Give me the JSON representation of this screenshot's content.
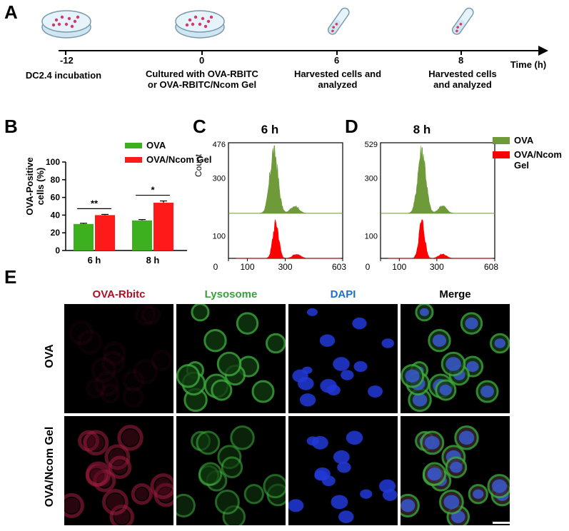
{
  "panels": {
    "a": "A",
    "b": "B",
    "c": "C",
    "d": "D",
    "e": "E"
  },
  "timeline": {
    "ticks": [
      {
        "value": "-12",
        "label": "DC2.4 incubation"
      },
      {
        "value": "0",
        "label": "Cultured with OVA-RBITC\nor OVA-RBITC/Ncom Gel"
      },
      {
        "value": "6",
        "label": "Harvested cells and\nanalyzed"
      },
      {
        "value": "8",
        "label": "Harvested cells\nand analyzed"
      }
    ],
    "axis_label": "Time (h)",
    "icons": [
      "petri-dish-icon",
      "petri-dish-icon",
      "test-tube-icon",
      "test-tube-icon"
    ]
  },
  "colors": {
    "ova": "#3cb01e",
    "ova_ncom": "#ff1a1a",
    "hist_green": "#6e9a3a",
    "hist_red": "#ff0000",
    "lysosome": "#3aa03a",
    "dapi": "#1c6fd0",
    "ova_rbitc": "#b01020"
  },
  "chart_data": [
    {
      "type": "bar",
      "ylabel": "OVA-Positive\ncells (%)",
      "categories": [
        "6 h",
        "8 h"
      ],
      "ylim": [
        0,
        100
      ],
      "yticks": [
        "0",
        "20",
        "40",
        "60",
        "80",
        "100"
      ],
      "series": [
        {
          "name": "OVA",
          "values": [
            30,
            34
          ],
          "errors": [
            0.8,
            1.0
          ]
        },
        {
          "name": "OVA/Ncom Gel",
          "values": [
            40,
            54
          ],
          "errors": [
            0.8,
            2.0
          ]
        }
      ],
      "significance": [
        "**",
        "*"
      ],
      "legend": "top"
    },
    {
      "type": "area",
      "title": "6 h",
      "ylabel": "Count",
      "yticks": [
        "100",
        "300",
        "476"
      ],
      "xticks": [
        "0",
        "100",
        "300",
        "603.1"
      ],
      "series": [
        {
          "name": "OVA",
          "peak": 476,
          "peak_x": 240
        },
        {
          "name": "OVA/Ncom Gel",
          "peak": 300,
          "peak_x": 250
        }
      ]
    },
    {
      "type": "area",
      "title": "8 h",
      "yticks": [
        "100",
        "300",
        "529"
      ],
      "xticks": [
        "0",
        "100",
        "300",
        "608.8"
      ],
      "series": [
        {
          "name": "OVA",
          "peak": 529,
          "peak_x": 220
        },
        {
          "name": "OVA/Ncom Gel",
          "peak": 350,
          "peak_x": 220
        }
      ]
    }
  ],
  "hist_legend": {
    "ova": "OVA",
    "ova_ncom": "OVA/Ncom\nGel"
  },
  "bar_legend": {
    "ova": "OVA",
    "ova_ncom": "OVA/Ncom Gel"
  },
  "microscopy": {
    "columns": [
      "OVA-Rbitc",
      "Lysosome",
      "DAPI",
      "Merge"
    ],
    "rows": [
      "OVA",
      "OVA/Ncom Gel"
    ]
  }
}
